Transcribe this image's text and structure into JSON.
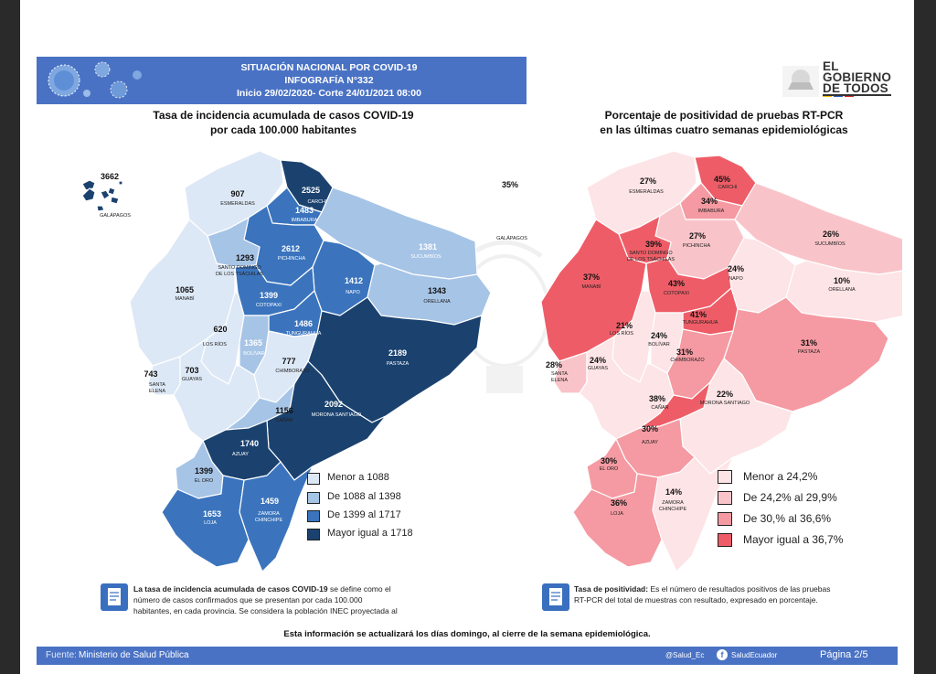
{
  "header": {
    "line1": "SITUACIÓN NACIONAL POR  COVID-19",
    "line2": "INFOGRAFÍA N°332",
    "line3": "Inicio 29/02/2020- Corte 24/01/2021 08:00"
  },
  "logo": {
    "line1": "EL",
    "line2": "GOBIERNO",
    "line3": "DE TODOS"
  },
  "left_map": {
    "title_line1": "Tasa de incidencia acumulada de casos COVID-19",
    "title_line2": "por cada 100.000 habitantes",
    "provinces": [
      {
        "name": "GALÁPAGOS",
        "value": "3662"
      },
      {
        "name": "ESMERALDAS",
        "value": "907"
      },
      {
        "name": "CARCHI",
        "value": "2525"
      },
      {
        "name": "IMBABURA",
        "value": "1483"
      },
      {
        "name": "SUCUMBÍOS",
        "value": "1381"
      },
      {
        "name": "PICHINCHA",
        "value": "2612"
      },
      {
        "name": "SANTO DOMINGO DE LOS TSÁCHILAS",
        "value": "1293"
      },
      {
        "name": "MANABÍ",
        "value": "1065"
      },
      {
        "name": "NAPO",
        "value": "1412"
      },
      {
        "name": "ORELLANA",
        "value": "1343"
      },
      {
        "name": "COTOPAXI",
        "value": "1399"
      },
      {
        "name": "LOS RÍOS",
        "value": "620"
      },
      {
        "name": "TUNGURAHUA",
        "value": "1486"
      },
      {
        "name": "BOLÍVAR",
        "value": "1365"
      },
      {
        "name": "PASTAZA",
        "value": "2189"
      },
      {
        "name": "CHIMBORAZO",
        "value": "777"
      },
      {
        "name": "SANTA ELENA",
        "value": "743"
      },
      {
        "name": "GUAYAS",
        "value": "703"
      },
      {
        "name": "CAÑAR",
        "value": "1156"
      },
      {
        "name": "MORONA SANTIAGO",
        "value": "2092"
      },
      {
        "name": "AZUAY",
        "value": "1740"
      },
      {
        "name": "EL ORO",
        "value": "1399"
      },
      {
        "name": "LOJA",
        "value": "1653"
      },
      {
        "name": "ZAMORA CHINCHIPE",
        "value": "1459"
      }
    ],
    "legend": [
      {
        "label": "Menor a 1088",
        "color": "#dde8f6"
      },
      {
        "label": "De 1088 al 1398",
        "color": "#a6c4e6"
      },
      {
        "label": "De 1399 al 1717",
        "color": "#3b74bd"
      },
      {
        "label": "Mayor igual a 1718",
        "color": "#1b426f"
      }
    ],
    "note": {
      "bold": "La tasa de incidencia acumulada de casos COVID-19",
      "line1": " se define como el",
      "line2": "número de casos confirmados que se presentan por cada 100.000",
      "line3": "habitantes, en cada provincia. Se considera la población INEC proyectada al"
    }
  },
  "right_map": {
    "title_line1": "Porcentaje de positividad de pruebas RT-PCR",
    "title_line2": "en las últimas cuatro semanas epidemiológicas",
    "provinces": [
      {
        "name": "GALÁPAGOS",
        "value": "35%"
      },
      {
        "name": "ESMERALDAS",
        "value": "27%"
      },
      {
        "name": "CARCHI",
        "value": "45%"
      },
      {
        "name": "IMBABURA",
        "value": "34%"
      },
      {
        "name": "SUCUMBÍOS",
        "value": "26%"
      },
      {
        "name": "PICHINCHA",
        "value": "27%"
      },
      {
        "name": "SANTO DOMINGO DE LOS TSÁCHILAS",
        "value": "39%"
      },
      {
        "name": "MANABÍ",
        "value": "37%"
      },
      {
        "name": "NAPO",
        "value": "24%"
      },
      {
        "name": "ORELLANA",
        "value": "10%"
      },
      {
        "name": "COTOPAXI",
        "value": "43%"
      },
      {
        "name": "TUNGURAHUA",
        "value": "41%"
      },
      {
        "name": "LOS RÍOS",
        "value": "21%"
      },
      {
        "name": "BOLÍVAR",
        "value": "24%"
      },
      {
        "name": "PASTAZA",
        "value": "31%"
      },
      {
        "name": "SANTA ELENA",
        "value": "28%"
      },
      {
        "name": "GUAYAS",
        "value": "24%"
      },
      {
        "name": "CHIMBORAZO",
        "value": "31%"
      },
      {
        "name": "MORONA SANTIAGO",
        "value": "22%"
      },
      {
        "name": "CAÑAR",
        "value": "38%"
      },
      {
        "name": "AZUAY",
        "value": "30%"
      },
      {
        "name": "EL ORO",
        "value": "30%"
      },
      {
        "name": "LOJA",
        "value": "36%"
      },
      {
        "name": "ZAMORA CHINCHIPE",
        "value": "14%"
      }
    ],
    "legend": [
      {
        "label": "Menor a 24,2%",
        "color": "#fde4e6"
      },
      {
        "label": "De 24,2% al 29,9%",
        "color": "#f9c4c9"
      },
      {
        "label": "De 30,% al 36,6%",
        "color": "#f59aa2"
      },
      {
        "label": "Mayor igual a 36,7%",
        "color": "#ee5d67"
      }
    ],
    "note": {
      "bold": "Tasa de positividad:",
      "line1": " Es el número de resultados positivos de las pruebas",
      "line2": "RT-PCR del total de muestras con resultado, expresado en porcentaje."
    }
  },
  "update_note": "Esta información se actualizará los días domingo, al cierre de la semana epidemiológica.",
  "footer": {
    "source_label": "Fuente:",
    "source": "Ministerio de Salud Pública",
    "twitter": "@Salud_Ec",
    "facebook": "SaludEcuador",
    "page": "Página 2/5"
  }
}
